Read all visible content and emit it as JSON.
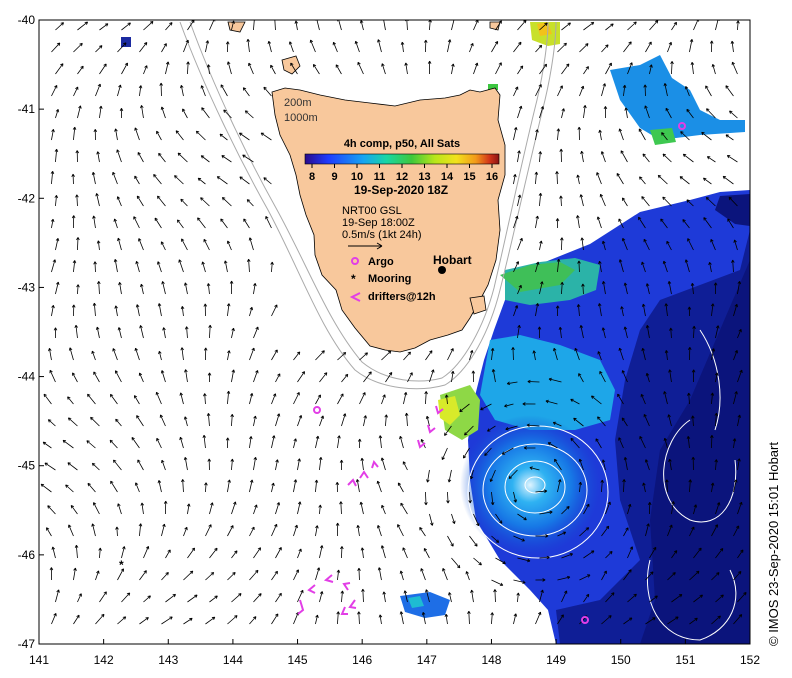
{
  "map": {
    "lon_ticks": [
      "141",
      "142",
      "143",
      "144",
      "145",
      "146",
      "147",
      "148",
      "149",
      "150",
      "151",
      "152"
    ],
    "lat_ticks": [
      "-40",
      "-41",
      "-42",
      "-43",
      "-44",
      "-45",
      "-46",
      "-47"
    ],
    "lon_range": [
      141,
      152
    ],
    "lat_range": [
      -47,
      -40
    ]
  },
  "isobaths": {
    "a": "200m",
    "b": "1000m"
  },
  "colorbar": {
    "title": "4h comp, p50, All Sats",
    "ticks": [
      "8",
      "9",
      "10",
      "11",
      "12",
      "13",
      "14",
      "15",
      "16"
    ],
    "colors": [
      "#2a0a8c",
      "#1f3cff",
      "#16a4f2",
      "#19d6a4",
      "#3ec83c",
      "#b9e61a",
      "#f2e21c",
      "#f29a1a",
      "#d2361a",
      "#8c1414"
    ],
    "date": "19-Sep-2020 18Z"
  },
  "current_info": {
    "line1": "NRT00 GSL",
    "line2": "19-Sep 18:00Z",
    "line3": "0.5m/s (1kt 24h)"
  },
  "legend": {
    "argo": "Argo",
    "mooring": "Mooring",
    "drifters": "drifters@12h"
  },
  "place": {
    "hobart": "Hobart"
  },
  "colors": {
    "land": "#f8c89c",
    "argo": "#e23ee6",
    "drifters": "#e23ee6",
    "isobath": "#aaaaaa"
  },
  "credit": "© IMOS 23-Sep-2020 15:01 Hobart"
}
